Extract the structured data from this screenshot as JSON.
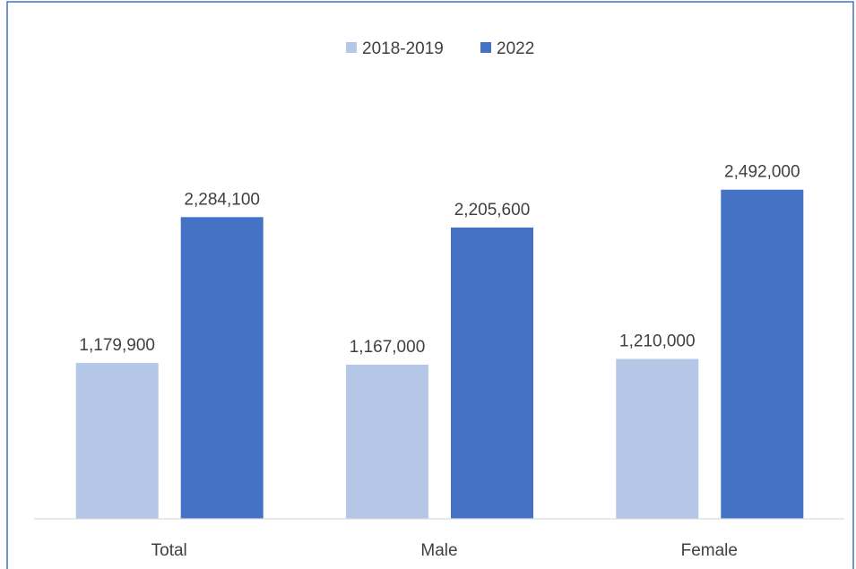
{
  "chart_data": {
    "type": "bar",
    "categories": [
      "Total",
      "Male",
      "Female"
    ],
    "series": [
      {
        "name": "2018-2019",
        "values": [
          1179900,
          1167000,
          1210000
        ],
        "color": "#b4c7e7"
      },
      {
        "name": "2022",
        "values": [
          2284100,
          2205600,
          2492000
        ],
        "color": "#4472c4"
      }
    ],
    "value_labels": [
      [
        "1,179,900",
        "1,167,000",
        "1,210,000"
      ],
      [
        "2,284,100",
        "2,205,600",
        "2,492,000"
      ]
    ],
    "title": "",
    "xlabel": "",
    "ylabel": "",
    "ylim": [
      0,
      3000000
    ],
    "grid": false,
    "legend_position": "top-center",
    "border_color": "#4472c4",
    "axis_color": "#d9d9d9"
  }
}
